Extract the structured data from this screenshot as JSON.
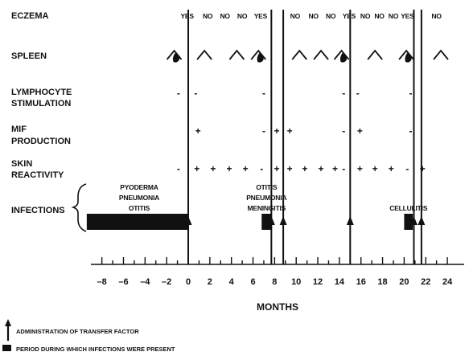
{
  "row_labels": {
    "eczema": "ECZEMA",
    "spleen": "SPLEEN",
    "lymph_line1": "LYMPHOCYTE",
    "lymph_line2": "STIMULATION",
    "mif_line1": "MIF",
    "mif_line2": "PRODUCTION",
    "skin_line1": "SKIN",
    "skin_line2": "REACTIVITY",
    "infections": "INFECTIONS"
  },
  "eczema": [
    {
      "month": -0.1,
      "text": "YES"
    },
    {
      "month": 1.8,
      "text": "NO"
    },
    {
      "month": 3.4,
      "text": "NO"
    },
    {
      "month": 5.0,
      "text": "NO"
    },
    {
      "month": 6.7,
      "text": "YES"
    },
    {
      "month": 9.9,
      "text": "NO"
    },
    {
      "month": 11.6,
      "text": "NO"
    },
    {
      "month": 13.2,
      "text": "NO"
    },
    {
      "month": 14.9,
      "text": "YES"
    },
    {
      "month": 16.4,
      "text": "NO"
    },
    {
      "month": 17.7,
      "text": "NO"
    },
    {
      "month": 19.0,
      "text": "NO"
    },
    {
      "month": 20.3,
      "text": "YES"
    },
    {
      "month": 23.0,
      "text": "NO"
    }
  ],
  "spleen": [
    {
      "month": -1.3,
      "state": "palpable"
    },
    {
      "month": 1.5,
      "state": "not-palpable"
    },
    {
      "month": 4.5,
      "state": "not-palpable"
    },
    {
      "month": 6.5,
      "state": "palpable"
    },
    {
      "month": 10.3,
      "state": "not-palpable"
    },
    {
      "month": 12.3,
      "state": "not-palpable"
    },
    {
      "month": 14.2,
      "state": "palpable"
    },
    {
      "month": 17.3,
      "state": "not-palpable"
    },
    {
      "month": 20.2,
      "state": "palpable"
    },
    {
      "month": 23.4,
      "state": "not-palpable"
    }
  ],
  "lymphocyte_stimulation": [
    {
      "month": -0.9,
      "sign": "-"
    },
    {
      "month": 0.7,
      "sign": "-"
    },
    {
      "month": 7.0,
      "sign": "-"
    },
    {
      "month": 14.4,
      "sign": "-"
    },
    {
      "month": 15.7,
      "sign": "-"
    },
    {
      "month": 20.6,
      "sign": "-"
    }
  ],
  "mif_production": [
    {
      "month": 0.9,
      "sign": "+"
    },
    {
      "month": 7.0,
      "sign": "-"
    },
    {
      "month": 8.2,
      "sign": "+"
    },
    {
      "month": 9.4,
      "sign": "+"
    },
    {
      "month": 14.4,
      "sign": "-"
    },
    {
      "month": 15.9,
      "sign": "+"
    },
    {
      "month": 20.6,
      "sign": "-"
    }
  ],
  "skin_reactivity": [
    {
      "month": -0.9,
      "sign": "-"
    },
    {
      "month": 0.8,
      "sign": "+"
    },
    {
      "month": 2.3,
      "sign": "+"
    },
    {
      "month": 3.8,
      "sign": "+"
    },
    {
      "month": 5.3,
      "sign": "+"
    },
    {
      "month": 6.8,
      "sign": "-"
    },
    {
      "month": 8.2,
      "sign": "+"
    },
    {
      "month": 9.4,
      "sign": "+"
    },
    {
      "month": 10.8,
      "sign": "+"
    },
    {
      "month": 12.3,
      "sign": "+"
    },
    {
      "month": 13.6,
      "sign": "+"
    },
    {
      "month": 14.4,
      "sign": "-"
    },
    {
      "month": 15.9,
      "sign": "+"
    },
    {
      "month": 17.3,
      "sign": "+"
    },
    {
      "month": 18.8,
      "sign": "+"
    },
    {
      "month": 20.3,
      "sign": "-"
    },
    {
      "month": 21.7,
      "sign": "+"
    }
  ],
  "infection_periods": [
    {
      "label_lines": [
        "PYODERMA",
        "PNEUMONIA",
        "OTITIS"
      ],
      "start": -9.4,
      "end": 0
    },
    {
      "label_lines": [
        "OTITIS",
        "PNEUMONIA",
        "MENINGITIS"
      ],
      "start": 6.8,
      "end": 7.7
    },
    {
      "label_lines": [
        "CELLULITIS"
      ],
      "start": 20.0,
      "end": 20.8
    }
  ],
  "transfer_factor_months": [
    0,
    7.7,
    8.8,
    15.0,
    20.9,
    21.6
  ],
  "axis": {
    "min": -8,
    "max": 24,
    "ticks": [
      -8,
      -6,
      -4,
      -2,
      0,
      2,
      4,
      6,
      8,
      10,
      12,
      14,
      16,
      18,
      20,
      22,
      24
    ],
    "label": "MONTHS"
  },
  "legend": {
    "arrow_text": "ADMINISTRATION OF TRANSFER FACTOR",
    "bar_text": "PERIOD DURING WHICH INFECTIONS WERE PRESENT",
    "arrow_icon": "up-arrow-icon",
    "bar_icon": "filled-bar-icon"
  }
}
